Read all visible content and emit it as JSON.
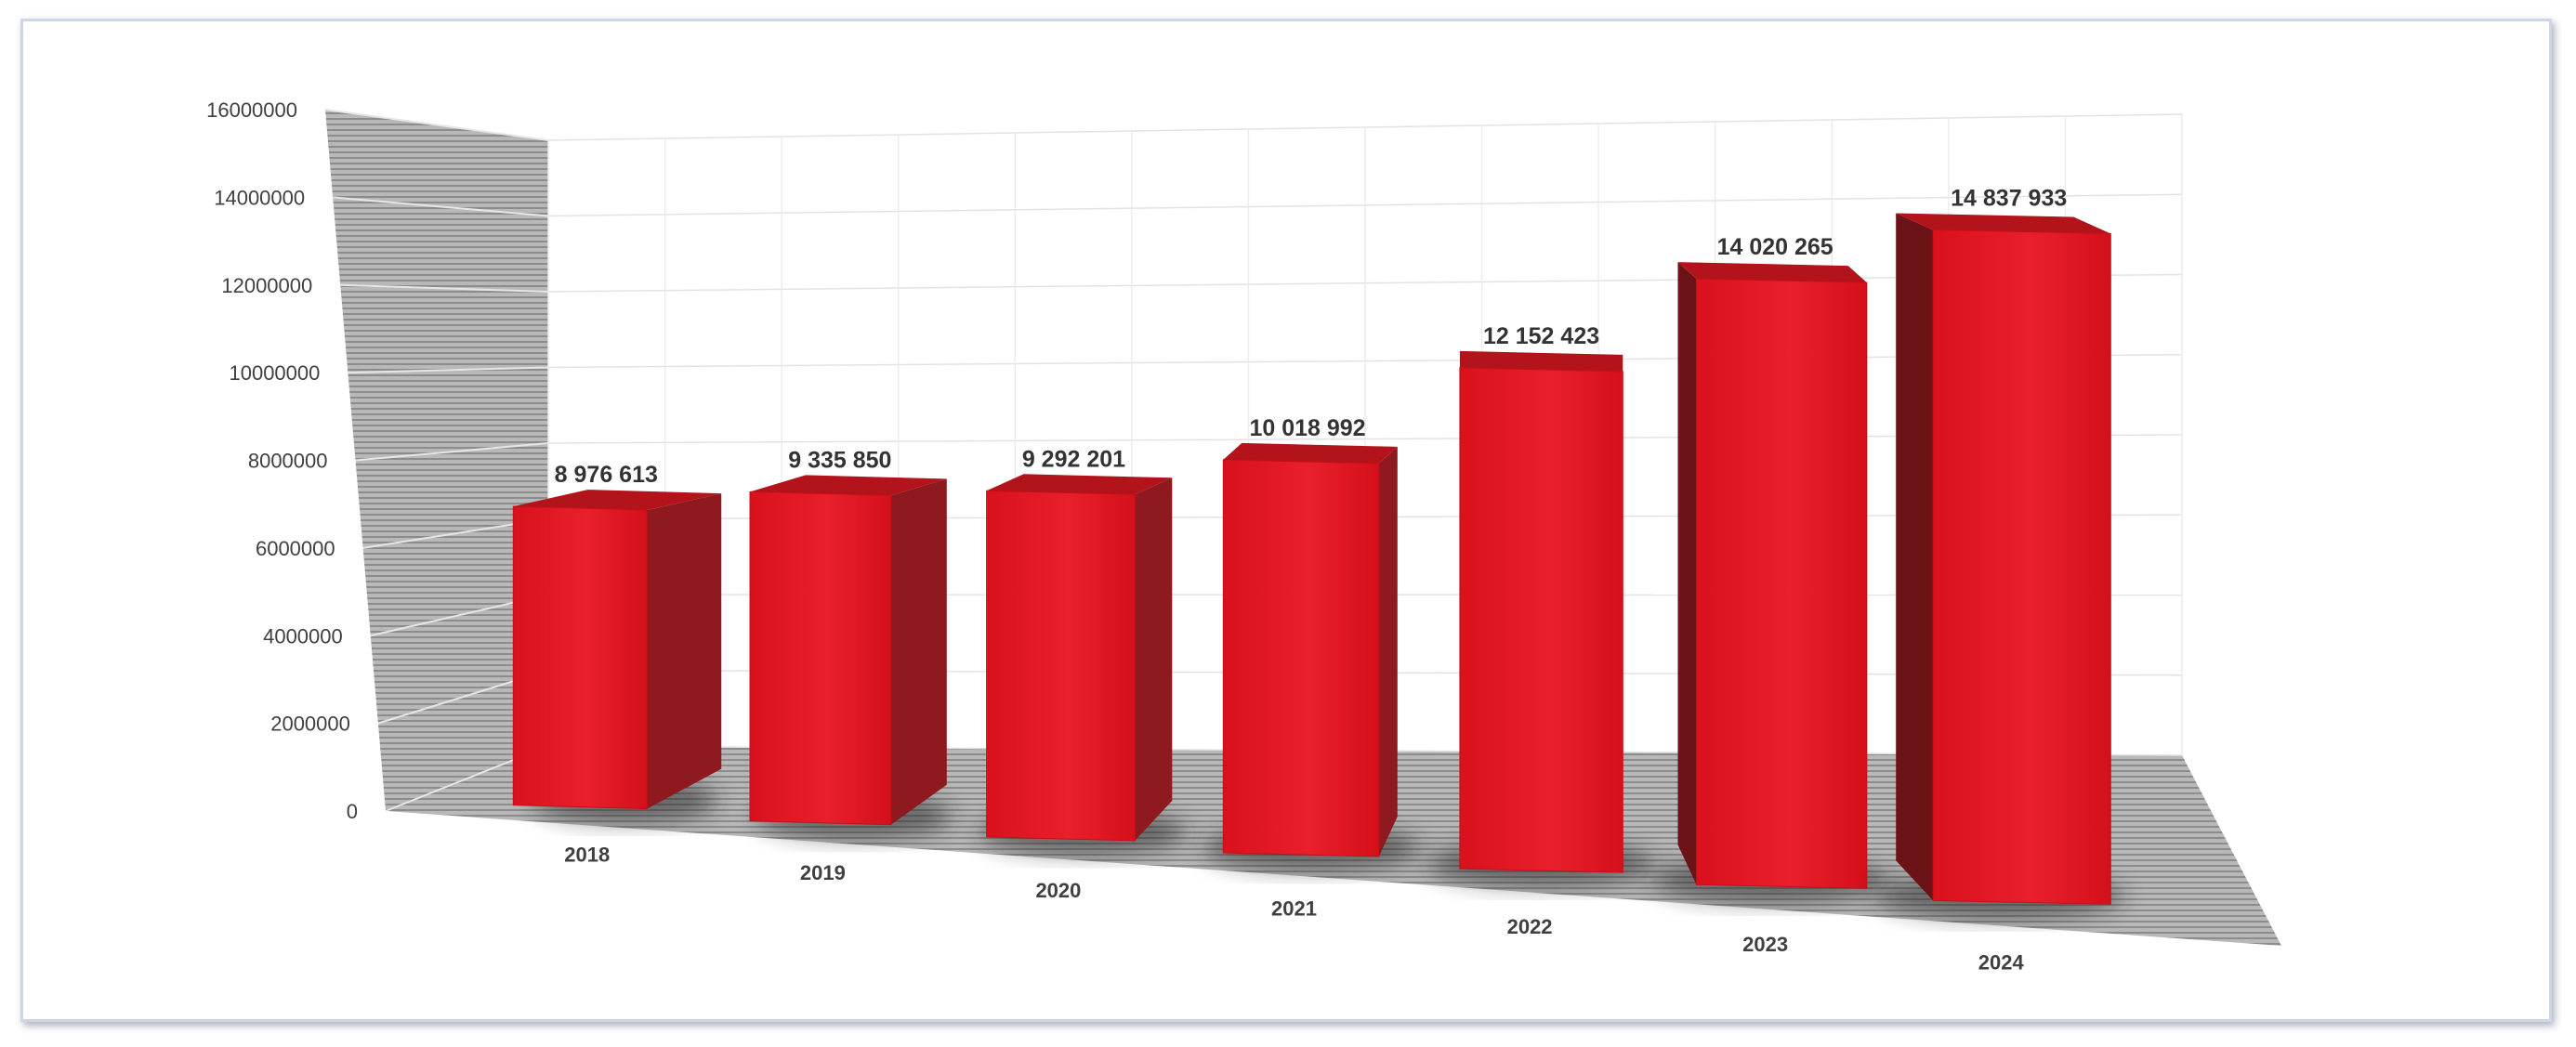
{
  "chart_data": {
    "type": "bar",
    "title": "",
    "xlabel": "",
    "ylabel": "",
    "categories": [
      "2018",
      "2019",
      "2020",
      "2021",
      "2022",
      "2023",
      "2024"
    ],
    "values": [
      8976613,
      9335850,
      9292201,
      10018992,
      12152423,
      14020265,
      14837933
    ],
    "data_labels": [
      "8 976 613",
      "9 335 850",
      "9 292 201",
      "10 018 992",
      "12 152 423",
      "14 020 265",
      "14 837 933"
    ],
    "y_ticks": [
      "0",
      "2000000",
      "4000000",
      "6000000",
      "8000000",
      "10000000",
      "12000000",
      "14000000",
      "16000000"
    ],
    "ylim": [
      0,
      16000000
    ],
    "grid": true,
    "legend": "none",
    "style": "3d-column",
    "bar_color": "#e0141e"
  }
}
